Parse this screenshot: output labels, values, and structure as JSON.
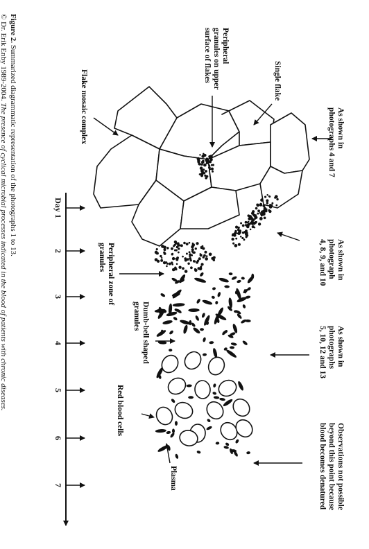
{
  "caption": {
    "label": "Figure 2.",
    "line1": "Summarized diagrammatic representation of the photographs 1 to 13.",
    "line2": "© Dr. Erik Enby 1989-2004.",
    "line2_italic": "The presence of cyclical microbial processes indicated in the blood of patients with chronic diseases."
  },
  "annotations": [
    {
      "lines": [
        "As shown in",
        "photographs 4 and 7"
      ]
    },
    {
      "lines": [
        "Single flake"
      ]
    },
    {
      "lines": [
        "Peripheral",
        "granules on upper",
        "surface of flakes"
      ]
    },
    {
      "lines": [
        "Flake mosaic complex"
      ]
    },
    {
      "lines": [
        "As shown in",
        "photograph",
        "4, 8, 9, and 10"
      ]
    },
    {
      "lines": [
        "Peripheral zone of",
        "granules"
      ]
    },
    {
      "lines": [
        "Dumb-bell shaped",
        "granules"
      ]
    },
    {
      "lines": [
        "As shown in",
        "photographs",
        "5, 10, 12 and 13"
      ]
    },
    {
      "lines": [
        "Red blood cells"
      ]
    },
    {
      "lines": [
        "Observations not possible",
        "beyond this point because",
        "blood becomes denatured"
      ]
    },
    {
      "lines": [
        "Plasma"
      ]
    }
  ],
  "day_axis": {
    "labels": [
      "Day 1",
      "2",
      "3",
      "4",
      "5",
      "6",
      "7"
    ]
  }
}
